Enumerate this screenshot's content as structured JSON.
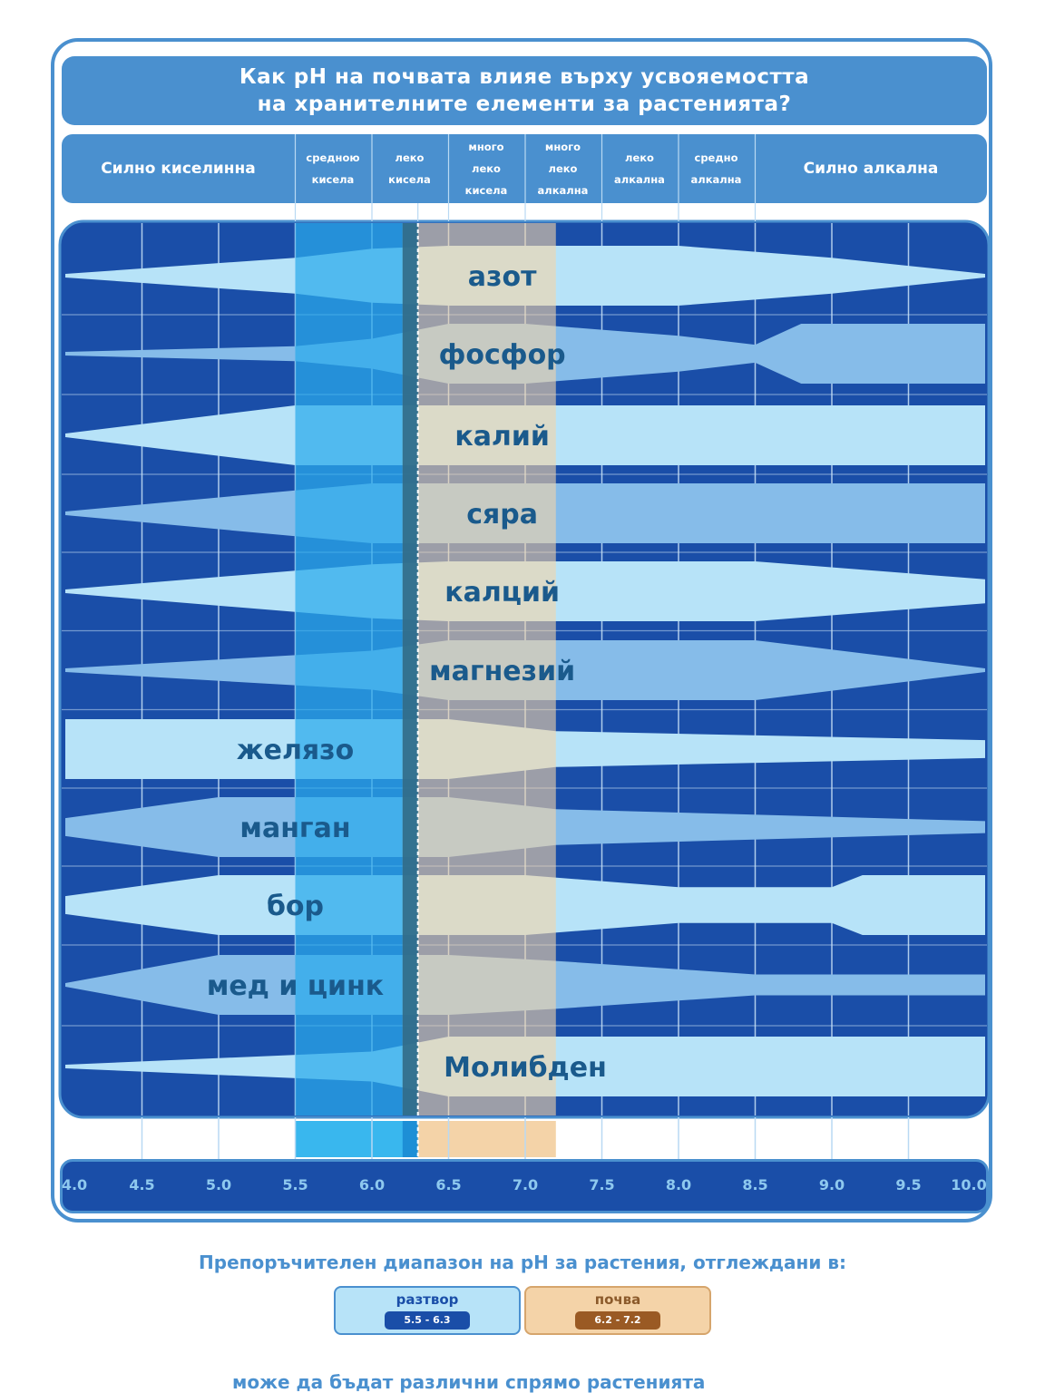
{
  "title": {
    "line1": "Как pH на почвата влияе върху усвояемостта",
    "line2": "на хранителните елементи за растенията?"
  },
  "categories": [
    {
      "lines": [
        "Силно киселинна"
      ],
      "size": "big"
    },
    {
      "lines": [
        "средною",
        "кисела"
      ],
      "size": "small"
    },
    {
      "lines": [
        "леко",
        "кисела"
      ],
      "size": "small"
    },
    {
      "lines": [
        "много",
        "леко",
        "кисела"
      ],
      "size": "small"
    },
    {
      "lines": [
        "много",
        "леко",
        "алкална"
      ],
      "size": "small"
    },
    {
      "lines": [
        "леко",
        "алкална"
      ],
      "size": "small"
    },
    {
      "lines": [
        "средно",
        "алкална"
      ],
      "size": "small"
    },
    {
      "lines": [
        "Силно алкална"
      ],
      "size": "big"
    }
  ],
  "ph_scale": [
    "4.0",
    "4.5",
    "5.0",
    "5.5",
    "6.0",
    "6.5",
    "7.0",
    "7.5",
    "8.0",
    "8.5",
    "9.0",
    "9.5",
    "10.0"
  ],
  "ranges": {
    "solution": {
      "label": "разтвор",
      "range": "5.5 - 6.3",
      "from": 5.5,
      "to": 6.3
    },
    "soil": {
      "label": "почва",
      "range": "6.2 - 7.2",
      "from": 6.2,
      "to": 7.2
    }
  },
  "colors": {
    "background": "#1a4ea8",
    "band_light": "#b7e3f8",
    "band_medium": "#86bce9",
    "solution_fill": "#29aaeb",
    "soil_fill": "#f4d3a8",
    "accent": "#4a90cf",
    "text_dark": "#1a5a8c"
  },
  "chart_data": {
    "type": "band-diagram",
    "xlim": [
      4.0,
      10.0
    ],
    "nutrients": [
      {
        "name": "азот",
        "tone": "light",
        "label_ph": 6.85,
        "profile": [
          [
            4.0,
            0
          ],
          [
            5.5,
            0.6
          ],
          [
            6.0,
            0.9
          ],
          [
            6.5,
            1
          ],
          [
            7.0,
            1
          ],
          [
            7.5,
            1
          ],
          [
            8.0,
            1
          ],
          [
            8.5,
            0.8
          ],
          [
            9.0,
            0.6
          ],
          [
            10.0,
            0
          ]
        ]
      },
      {
        "name": "фосфор",
        "tone": "medium",
        "label_ph": 6.85,
        "profile": [
          [
            4.0,
            0
          ],
          [
            5.5,
            0.25
          ],
          [
            6.0,
            0.5
          ],
          [
            6.5,
            1
          ],
          [
            7.0,
            1
          ],
          [
            7.5,
            0.8
          ],
          [
            8.0,
            0.6
          ],
          [
            8.5,
            0.3
          ],
          [
            8.8,
            1
          ],
          [
            10.0,
            1
          ]
        ]
      },
      {
        "name": "калий",
        "tone": "light",
        "label_ph": 6.85,
        "profile": [
          [
            4.0,
            0
          ],
          [
            5.5,
            1
          ],
          [
            10.0,
            1
          ]
        ]
      },
      {
        "name": "сяра",
        "tone": "medium",
        "label_ph": 6.85,
        "profile": [
          [
            4.0,
            0
          ],
          [
            6.0,
            1
          ],
          [
            10.0,
            1
          ]
        ]
      },
      {
        "name": "калций",
        "tone": "light",
        "label_ph": 6.85,
        "profile": [
          [
            4.0,
            0
          ],
          [
            6.0,
            0.9
          ],
          [
            6.5,
            1
          ],
          [
            8.5,
            1
          ],
          [
            10.0,
            0.4
          ]
        ]
      },
      {
        "name": "магнезий",
        "tone": "medium",
        "label_ph": 6.85,
        "profile": [
          [
            4.0,
            0
          ],
          [
            6.0,
            0.65
          ],
          [
            6.5,
            1
          ],
          [
            8.5,
            1
          ],
          [
            10.0,
            0
          ]
        ]
      },
      {
        "name": "желязо",
        "tone": "light",
        "label_ph": 5.5,
        "profile": [
          [
            4.0,
            1
          ],
          [
            6.5,
            1
          ],
          [
            7.2,
            0.6
          ],
          [
            10.0,
            0.3
          ]
        ]
      },
      {
        "name": "манган",
        "tone": "medium",
        "label_ph": 5.5,
        "profile": [
          [
            4.0,
            0.3
          ],
          [
            5.0,
            1
          ],
          [
            6.5,
            1
          ],
          [
            7.2,
            0.6
          ],
          [
            10.0,
            0.2
          ]
        ]
      },
      {
        "name": "бор",
        "tone": "light",
        "label_ph": 5.5,
        "profile": [
          [
            4.0,
            0.3
          ],
          [
            5.0,
            1
          ],
          [
            7.0,
            1
          ],
          [
            8.0,
            0.6
          ],
          [
            9.0,
            0.6
          ],
          [
            9.2,
            1
          ],
          [
            10.0,
            1
          ]
        ]
      },
      {
        "name": "мед и цинк",
        "tone": "medium",
        "label_ph": 5.5,
        "profile": [
          [
            4.0,
            0
          ],
          [
            5.0,
            1
          ],
          [
            6.5,
            1
          ],
          [
            7.2,
            0.8
          ],
          [
            8.5,
            0.35
          ],
          [
            10.0,
            0.35
          ]
        ]
      },
      {
        "name": "Молибден",
        "tone": "light",
        "label_ph": 7.0,
        "profile": [
          [
            4.0,
            0
          ],
          [
            6.0,
            0.5
          ],
          [
            6.5,
            1
          ],
          [
            10.0,
            1
          ]
        ]
      }
    ]
  },
  "footer": {
    "title": "Препоръчителен диапазон на pH за растения, отглеждани в:",
    "note": "може да бъдат различни спрямо растенията"
  }
}
